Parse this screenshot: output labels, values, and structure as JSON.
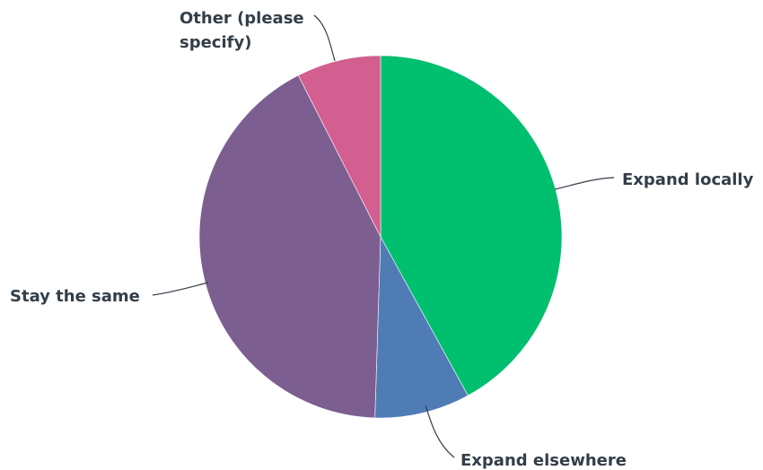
{
  "chart_data": {
    "type": "pie",
    "title": "",
    "start_angle_deg": 0,
    "direction": "clockwise",
    "slices": [
      {
        "label": "Expand locally",
        "value": 42,
        "color": "#00bf6f"
      },
      {
        "label": "Expand elsewhere",
        "value": 8.5,
        "color": "#507cb6"
      },
      {
        "label": "Stay the same",
        "value": 42,
        "color": "#7d5e90"
      },
      {
        "label": "Other (please specify)",
        "value": 7.5,
        "color": "#d25f90"
      }
    ]
  }
}
